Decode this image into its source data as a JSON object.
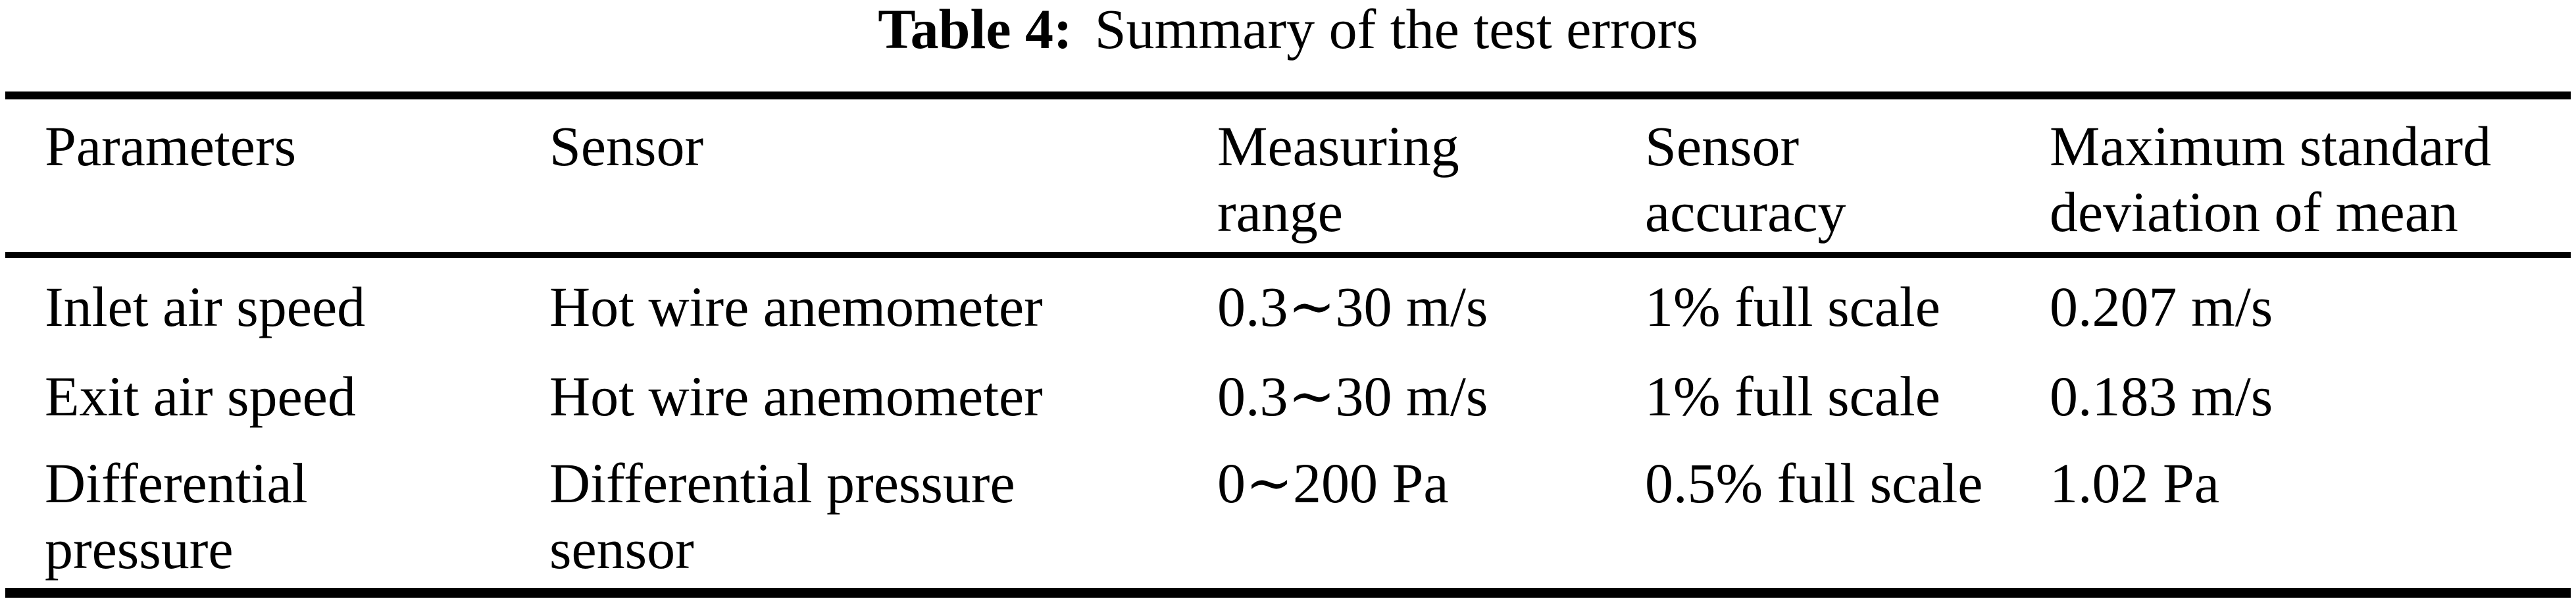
{
  "caption": {
    "label": "Table 4:",
    "title": "Summary of the test errors"
  },
  "table": {
    "headers": [
      {
        "lines": [
          "Parameters"
        ]
      },
      {
        "lines": [
          "Sensor"
        ]
      },
      {
        "lines": [
          "Measuring",
          "range"
        ]
      },
      {
        "lines": [
          "Sensor",
          "accuracy"
        ]
      },
      {
        "lines": [
          "Maximum standard",
          "deviation of mean"
        ]
      }
    ],
    "rows": [
      {
        "cells": [
          {
            "lines": [
              "Inlet air speed"
            ]
          },
          {
            "lines": [
              "Hot wire anemometer"
            ]
          },
          {
            "lines": [
              "0.3∼30 m/s"
            ]
          },
          {
            "lines": [
              "1% full scale"
            ]
          },
          {
            "lines": [
              "0.207 m/s"
            ]
          }
        ]
      },
      {
        "cells": [
          {
            "lines": [
              "Exit air speed"
            ]
          },
          {
            "lines": [
              "Hot wire anemometer"
            ]
          },
          {
            "lines": [
              "0.3∼30 m/s"
            ]
          },
          {
            "lines": [
              "1% full scale"
            ]
          },
          {
            "lines": [
              "0.183 m/s"
            ]
          }
        ]
      },
      {
        "cells": [
          {
            "lines": [
              "Differential",
              "pressure"
            ]
          },
          {
            "lines": [
              "Differential pressure",
              "sensor"
            ]
          },
          {
            "lines": [
              "0∼200 Pa"
            ]
          },
          {
            "lines": [
              "0.5% full scale"
            ]
          },
          {
            "lines": [
              "1.02 Pa"
            ]
          }
        ]
      }
    ]
  },
  "colors": {
    "text": "#000000",
    "background": "#ffffff",
    "rule": "#000000"
  }
}
